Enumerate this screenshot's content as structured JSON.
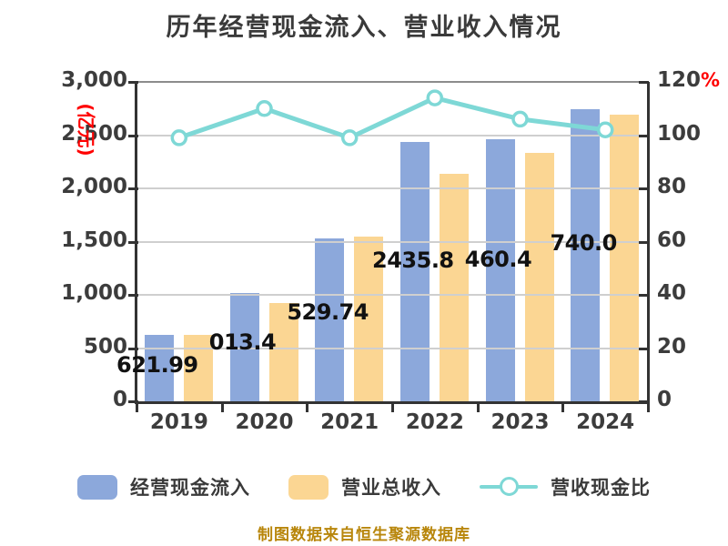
{
  "title": "历年经营现金流入、营业收入情况",
  "caption": "制图数据来自恒生聚源数据库",
  "left_axis": {
    "unit_label": "(亿元)",
    "tick_labels": [
      "0",
      "500",
      "1,000",
      "1,500",
      "2,000",
      "2,500",
      "3,000"
    ]
  },
  "right_axis": {
    "unit_label": "%",
    "tick_labels": [
      "0",
      "20",
      "40",
      "60",
      "80",
      "100",
      "120"
    ]
  },
  "chart_data": {
    "type": "bar",
    "categories": [
      "2019",
      "2020",
      "2021",
      "2022",
      "2023",
      "2024"
    ],
    "series": [
      {
        "name": "经营现金流入",
        "type": "bar",
        "axis": "left",
        "color": "#8CA8DB",
        "values": [
          621.99,
          1013.4,
          1529.74,
          2435.8,
          2460.4,
          2740.0
        ]
      },
      {
        "name": "营业总收入",
        "type": "bar",
        "axis": "left",
        "color": "#FBD693",
        "values": [
          628,
          920,
          1545,
          2140,
          2330,
          2690
        ]
      },
      {
        "name": "营收现金比",
        "type": "line",
        "axis": "right",
        "color": "#7ED8D6",
        "values": [
          99,
          110,
          99,
          114,
          106,
          102
        ]
      }
    ],
    "bar_value_labels_visible": [
      "621.99",
      "013.4",
      "529.74",
      "2435.8",
      "460.4",
      "740.0"
    ],
    "left_ylim": [
      0,
      3000
    ],
    "right_ylim": [
      0,
      120
    ],
    "grid": true,
    "legend_position": "bottom"
  },
  "legend": [
    {
      "label": "经营现金流入",
      "marker": "rect",
      "color": "#8CA8DB"
    },
    {
      "label": "营业总收入",
      "marker": "rect",
      "color": "#FBD693"
    },
    {
      "label": "营收现金比",
      "marker": "line-circle",
      "color": "#7ED8D6"
    }
  ],
  "colors": {
    "axis_unit_red": "#FF0000",
    "title_text": "#3A3A3A",
    "axis_text": "#3C3C3C",
    "bar_label_text": "#111111",
    "caption_text": "#B8860B",
    "gridline": "#CFCFCF",
    "plot_top_border": "#8C8C8C",
    "axis_line": "#333333"
  }
}
